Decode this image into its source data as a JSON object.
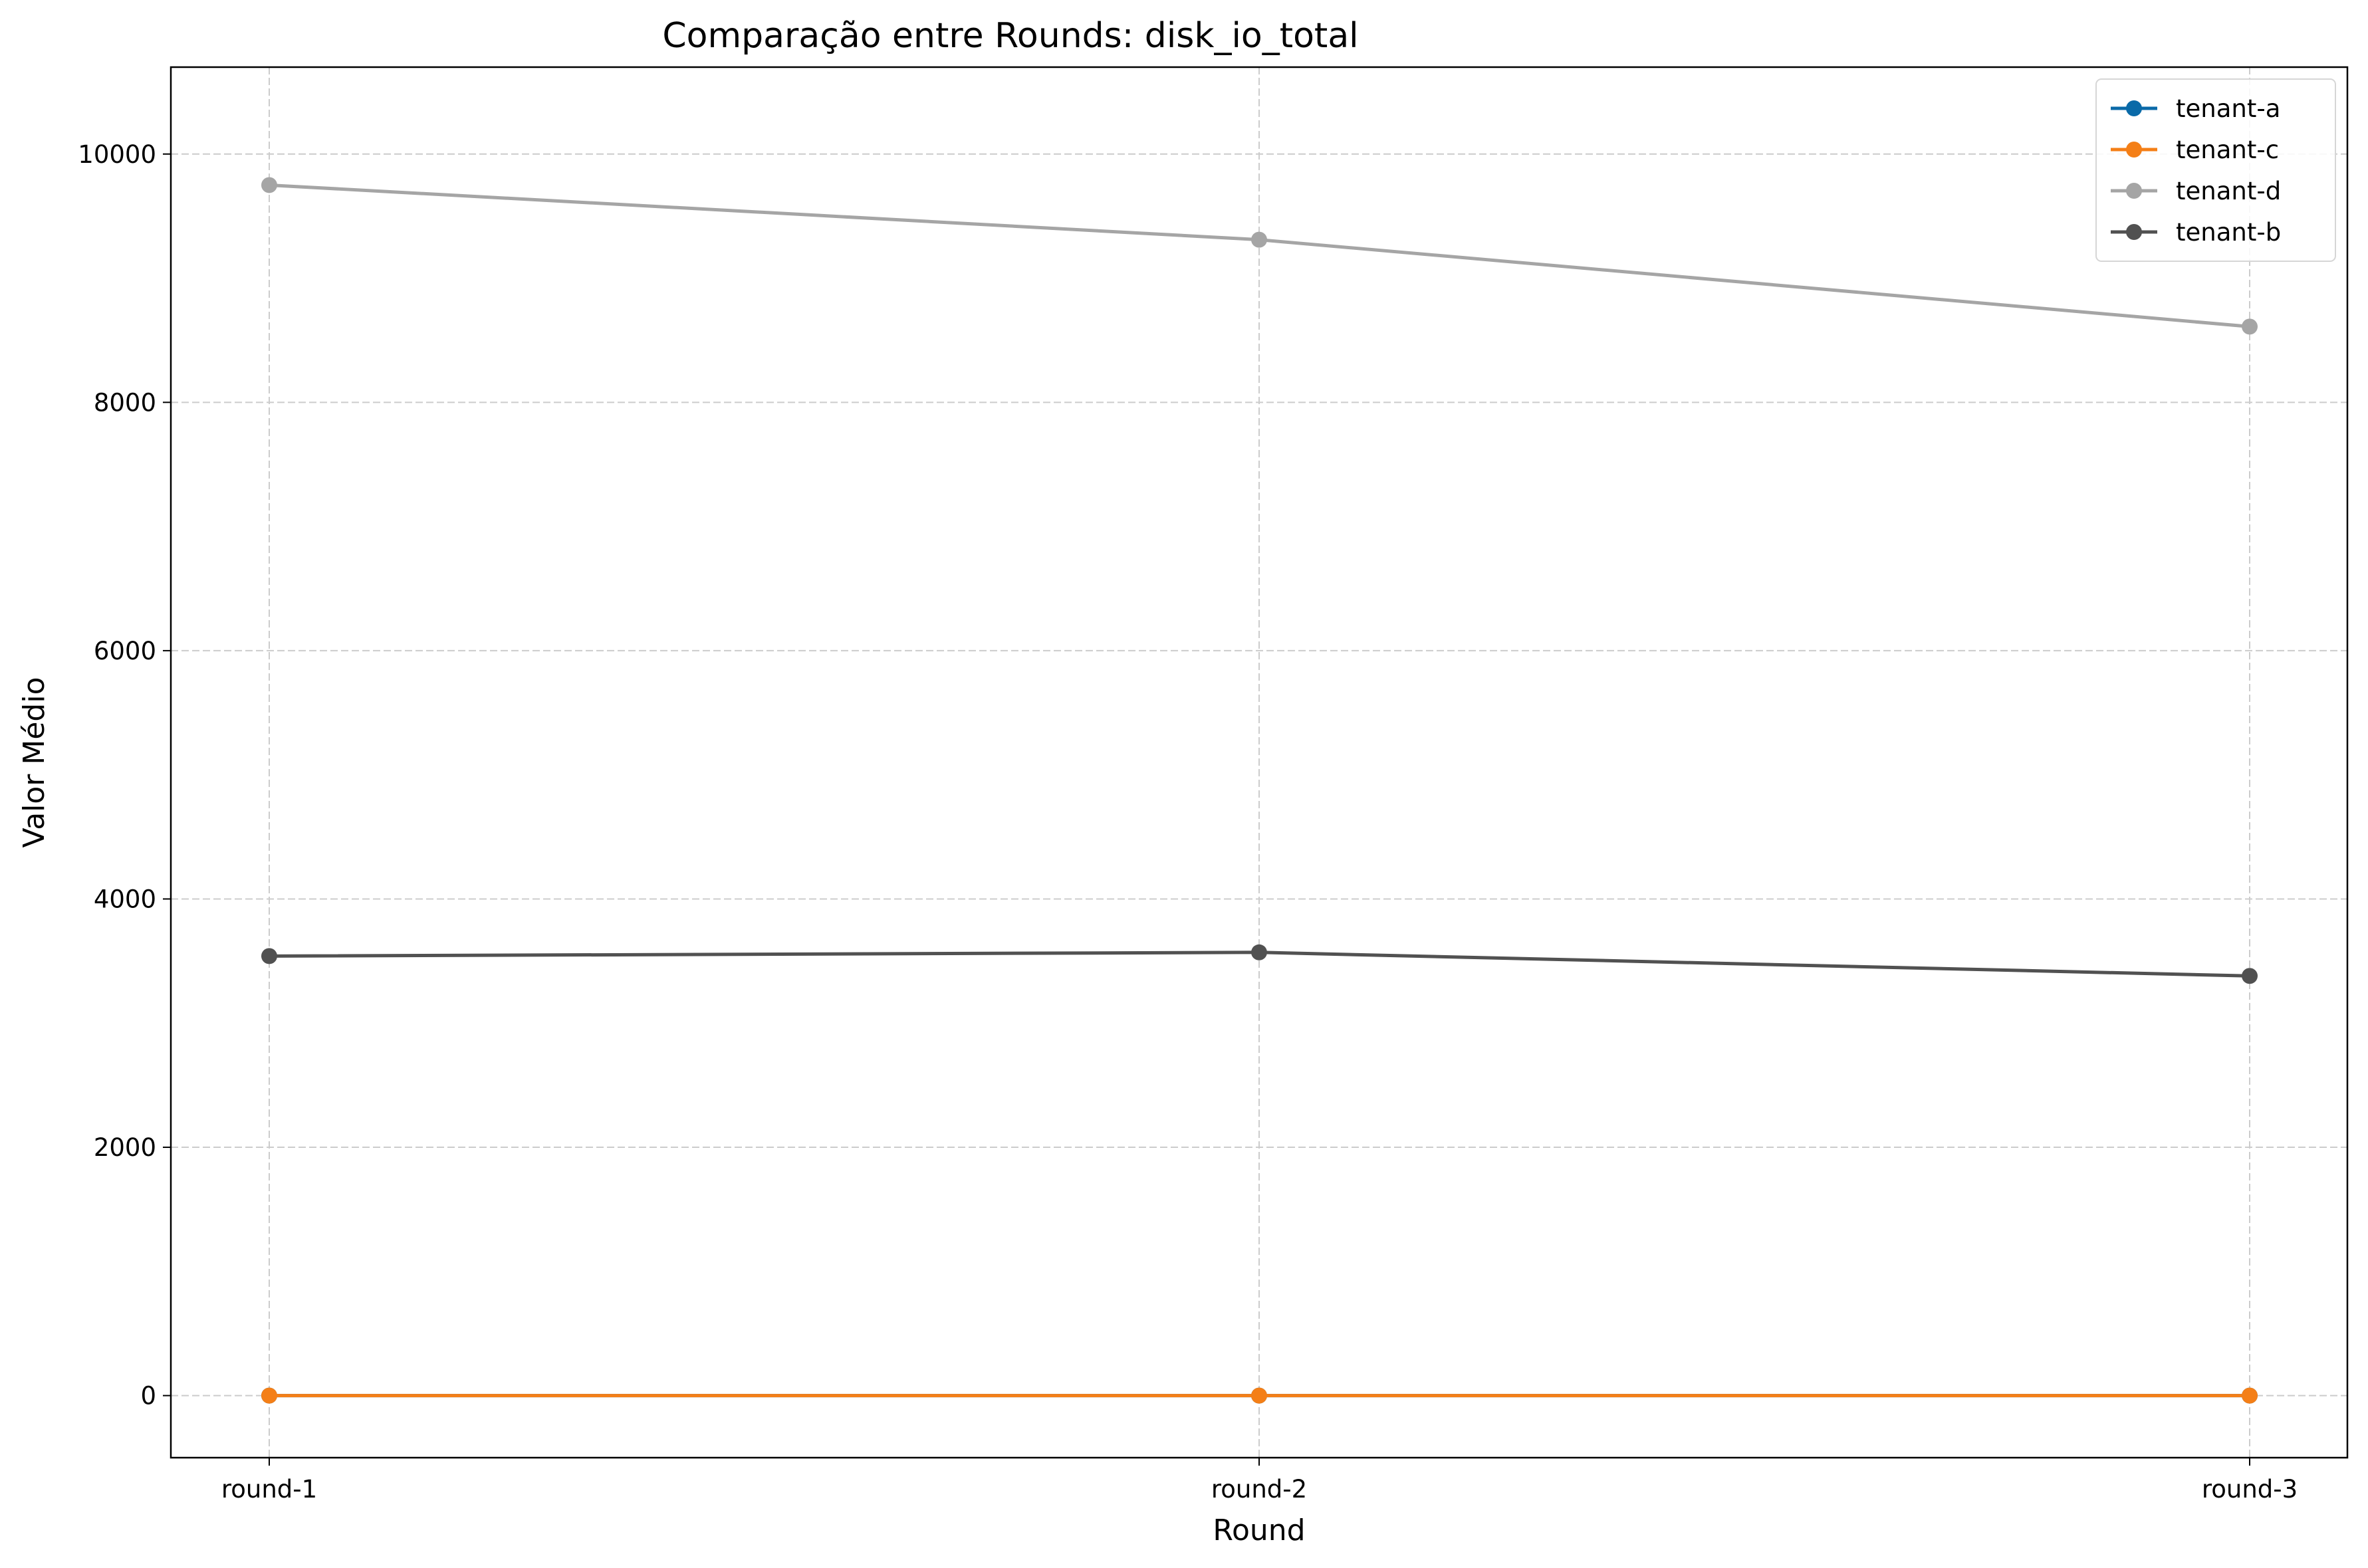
{
  "chart_data": {
    "type": "line",
    "title": "Comparação entre Rounds: disk_io_total",
    "xlabel": "Round",
    "ylabel": "Valor Médio",
    "categories": [
      "round-1",
      "round-2",
      "round-3"
    ],
    "ylim": [
      -500,
      10700
    ],
    "yticks": [
      0,
      2000,
      4000,
      6000,
      8000,
      10000
    ],
    "grid": true,
    "legend_position": "top-right",
    "series": [
      {
        "name": "tenant-a",
        "color": "#0a6aa8",
        "values": [
          0,
          0,
          0
        ]
      },
      {
        "name": "tenant-c",
        "color": "#f47f17",
        "values": [
          0,
          0,
          0
        ]
      },
      {
        "name": "tenant-d",
        "color": "#a5a5a5",
        "values": [
          9750,
          9310,
          8610
        ]
      },
      {
        "name": "tenant-b",
        "color": "#515151",
        "values": [
          3540,
          3570,
          3380
        ]
      }
    ],
    "draw_order": [
      2,
      3,
      0,
      1
    ]
  }
}
